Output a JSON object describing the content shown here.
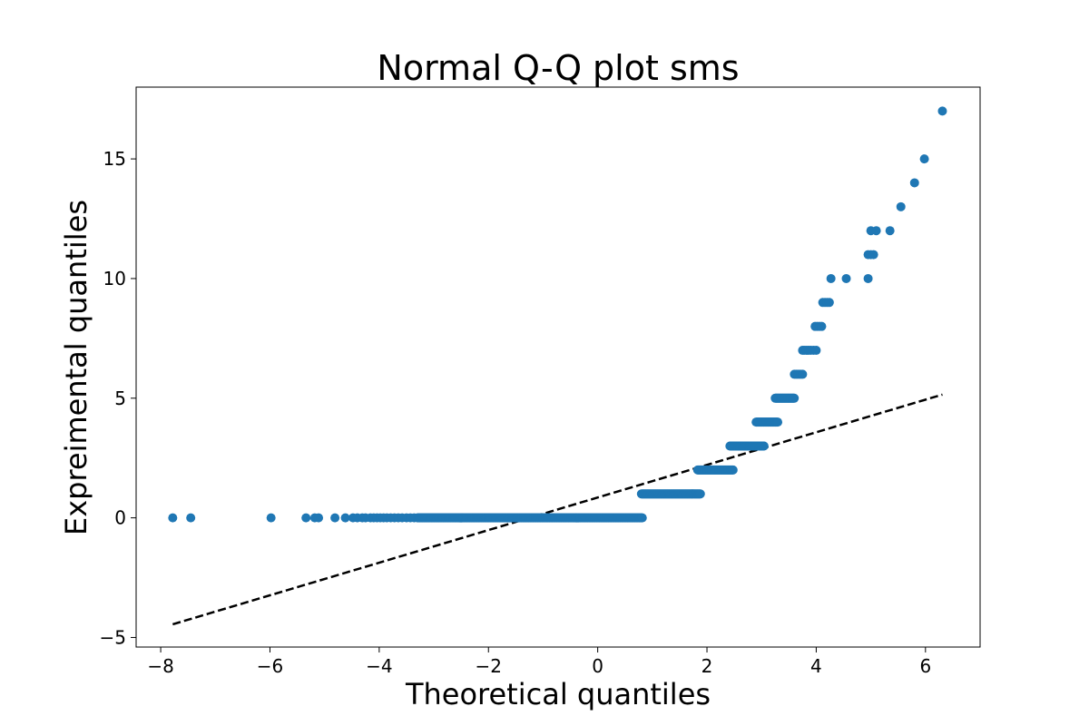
{
  "chart_data": {
    "type": "scatter",
    "title": "Normal Q-Q plot sms",
    "xlabel": "Theoretical quantiles",
    "ylabel": "Expreimental quantiles",
    "xlim": [
      -8.45,
      7.0
    ],
    "ylim": [
      -5.4,
      18.0
    ],
    "xticks": [
      -8,
      -6,
      -4,
      -2,
      0,
      2,
      4,
      6
    ],
    "yticks": [
      -5,
      0,
      5,
      10,
      15
    ],
    "xtick_labels": [
      "−8",
      "−6",
      "−4",
      "−2",
      "0",
      "2",
      "4",
      "6"
    ],
    "ytick_labels": [
      "−5",
      "0",
      "5",
      "10",
      "15"
    ],
    "grid": false,
    "marker_color": "#1f77b4",
    "reference_line": {
      "style": "dashed",
      "color": "#000000",
      "x": [
        -7.78,
        6.31
      ],
      "y": [
        -4.45,
        5.15
      ]
    },
    "series": [
      {
        "type": "scatter",
        "runs": [
          {
            "y": 0,
            "x": [
              -7.78,
              -7.45,
              -5.98,
              -5.34,
              -5.18,
              -5.11,
              -4.81,
              -4.62,
              -4.48,
              -4.4,
              -4.31,
              -4.25,
              -4.16,
              -4.1,
              -4.04,
              -3.98,
              -3.92,
              -3.86,
              -3.79,
              -3.72,
              -3.65,
              -3.58,
              -3.5,
              -3.43,
              -3.36
            ],
            "x_dense": [
              -3.3,
              0.82
            ]
          },
          {
            "y": 1,
            "x_dense": [
              0.8,
              1.88
            ]
          },
          {
            "y": 2,
            "x_dense": [
              1.83,
              2.48
            ]
          },
          {
            "y": 3,
            "x_dense": [
              2.42,
              3.05
            ]
          },
          {
            "y": 4,
            "x_dense": [
              2.9,
              3.3
            ]
          },
          {
            "y": 5,
            "x_dense": [
              3.25,
              3.6
            ]
          },
          {
            "y": 6,
            "x": [
              3.6,
              3.63,
              3.66,
              3.69,
              3.72,
              3.75
            ]
          },
          {
            "y": 7,
            "x": [
              3.75,
              3.78,
              3.82,
              3.86,
              3.9,
              3.95,
              4.0
            ]
          },
          {
            "y": 8,
            "x": [
              3.98,
              4.02,
              4.06,
              4.1
            ]
          },
          {
            "y": 9,
            "x": [
              4.12,
              4.16,
              4.2,
              4.24
            ]
          },
          {
            "y": 10,
            "x": [
              4.27,
              4.55,
              4.95
            ]
          },
          {
            "y": 11,
            "x": [
              4.95,
              5.0,
              5.05
            ]
          },
          {
            "y": 12,
            "x": [
              5.0,
              5.1,
              5.35
            ]
          },
          {
            "y": 13,
            "x": [
              5.55
            ]
          },
          {
            "y": 14,
            "x": [
              5.8
            ]
          },
          {
            "y": 15,
            "x": [
              5.98
            ]
          },
          {
            "y": 17,
            "x": [
              6.31
            ]
          }
        ]
      }
    ]
  }
}
